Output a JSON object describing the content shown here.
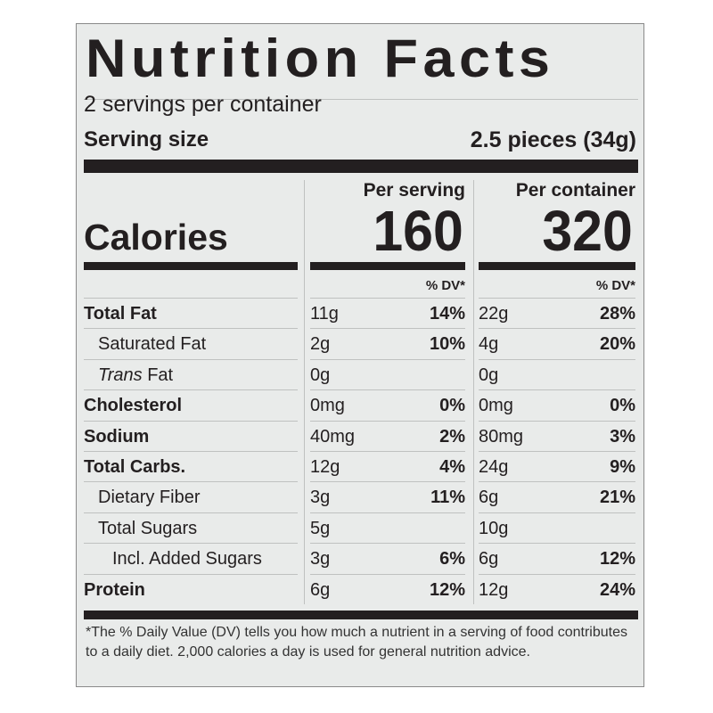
{
  "title": "Nutrition Facts",
  "servings_per_container": "2 servings per container",
  "serving_size_label": "Serving size",
  "serving_size_value": "2.5 pieces (34g)",
  "calories_label": "Calories",
  "per_serving_label": "Per serving",
  "per_container_label": "Per container",
  "calories_per_serving": "160",
  "calories_per_container": "320",
  "dv_header": "% DV*",
  "rows": [
    {
      "name": "Total Fat",
      "bold": true,
      "indent": 0,
      "serv_amt": "11g",
      "serv_dv": "14%",
      "cont_amt": "22g",
      "cont_dv": "28%"
    },
    {
      "name": "Saturated Fat",
      "bold": false,
      "indent": 1,
      "serv_amt": "2g",
      "serv_dv": "10%",
      "cont_amt": "4g",
      "cont_dv": "20%"
    },
    {
      "name_italic": "Trans",
      "name": " Fat",
      "bold": false,
      "indent": 1,
      "serv_amt": "0g",
      "serv_dv": "",
      "cont_amt": "0g",
      "cont_dv": ""
    },
    {
      "name": "Cholesterol",
      "bold": true,
      "indent": 0,
      "serv_amt": "0mg",
      "serv_dv": "0%",
      "cont_amt": "0mg",
      "cont_dv": "0%"
    },
    {
      "name": "Sodium",
      "bold": true,
      "indent": 0,
      "serv_amt": "40mg",
      "serv_dv": "2%",
      "cont_amt": "80mg",
      "cont_dv": "3%"
    },
    {
      "name": "Total Carbs.",
      "bold": true,
      "indent": 0,
      "serv_amt": "12g",
      "serv_dv": "4%",
      "cont_amt": "24g",
      "cont_dv": "9%"
    },
    {
      "name": "Dietary Fiber",
      "bold": false,
      "indent": 1,
      "serv_amt": "3g",
      "serv_dv": "11%",
      "cont_amt": "6g",
      "cont_dv": "21%"
    },
    {
      "name": "Total Sugars",
      "bold": false,
      "indent": 1,
      "serv_amt": "5g",
      "serv_dv": "",
      "cont_amt": "10g",
      "cont_dv": ""
    },
    {
      "name": "Incl. Added Sugars",
      "bold": false,
      "indent": 2,
      "serv_amt": "3g",
      "serv_dv": "6%",
      "cont_amt": "6g",
      "cont_dv": "12%"
    },
    {
      "name": "Protein",
      "bold": true,
      "indent": 0,
      "serv_amt": "6g",
      "serv_dv": "12%",
      "cont_amt": "12g",
      "cont_dv": "24%"
    }
  ],
  "footnote": "*The % Daily Value (DV) tells you how much a nutrient in a serving of food contributes to a daily diet. 2,000 calories a day is used for general nutrition advice."
}
